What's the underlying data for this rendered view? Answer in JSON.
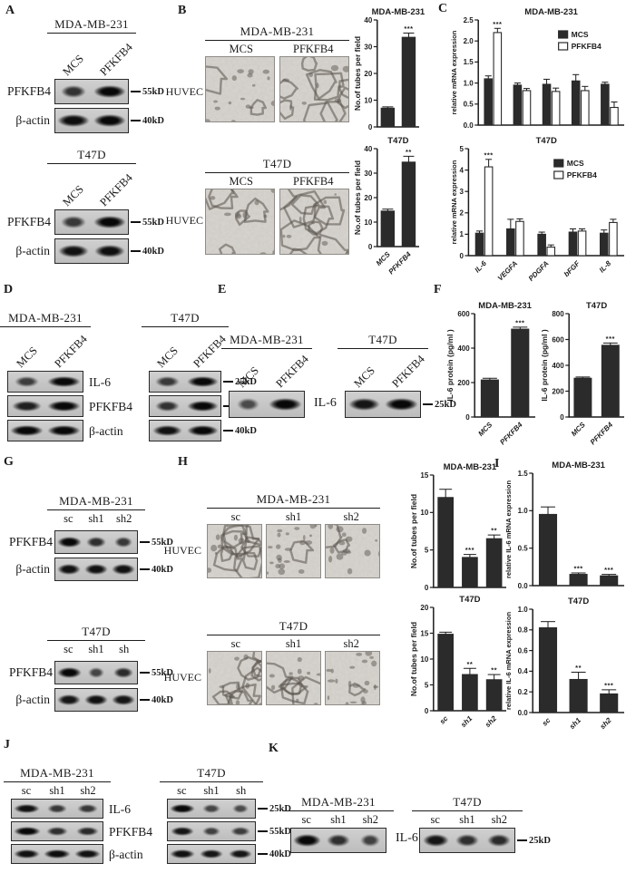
{
  "colors": {
    "ink": "#1a1a1a",
    "bar": "#2b2b2b",
    "blot_bg": "#c8c8c8",
    "micro_bg": "#d8d5d0"
  },
  "panels": {
    "A": {
      "label": "A",
      "groups": [
        {
          "title": "MDA-MB-231",
          "lane_style": "rotated",
          "lanes": [
            "MCS",
            "PFKFB4"
          ],
          "rows": [
            {
              "label": "PFKFB4",
              "marker": "55kD",
              "bands": [
                0.55,
                1
              ]
            },
            {
              "label": "β-actin",
              "marker": "40kD",
              "bands": [
                0.95,
                1
              ]
            }
          ]
        },
        {
          "title": "T47D",
          "lane_style": "rotated",
          "lanes": [
            "MCS",
            "PFKFB4"
          ],
          "rows": [
            {
              "label": "PFKFB4",
              "marker": "55kD",
              "bands": [
                0.5,
                1
              ]
            },
            {
              "label": "β-actin",
              "marker": "40kD",
              "bands": [
                0.9,
                0.92
              ]
            }
          ]
        }
      ]
    },
    "B": {
      "label": "B",
      "huvec_label": "HUVEC",
      "groups": [
        {
          "title": "MDA-MB-231",
          "lanes": [
            "MCS",
            "PFKFB4"
          ],
          "images": [
            {
              "tubes": "sparse"
            },
            {
              "tubes": "dense"
            }
          ]
        },
        {
          "title": "T47D",
          "lanes": [
            "MCS",
            "PFKFB4"
          ],
          "images": [
            {
              "tubes": "medium"
            },
            {
              "tubes": "dense"
            }
          ]
        }
      ]
    },
    "C": {
      "label": "C"
    },
    "D": {
      "label": "D",
      "row_labels": [
        "IL-6",
        "PFKFB4",
        "β-actin"
      ],
      "groups": [
        {
          "title": "MDA-MB-231",
          "lane_style": "rotated",
          "lanes": [
            "MCS",
            "PFKFB4"
          ],
          "rows": [
            {
              "bands": [
                0.45,
                1
              ]
            },
            {
              "bands": [
                0.75,
                1
              ]
            },
            {
              "bands": [
                1,
                1
              ]
            }
          ]
        },
        {
          "title": "T47D",
          "lane_style": "rotated",
          "lanes": [
            "MCS",
            "PFKFB4"
          ],
          "rows": [
            {
              "marker": "25kD",
              "bands": [
                0.5,
                1
              ]
            },
            {
              "marker": "55kD",
              "bands": [
                0.55,
                1
              ]
            },
            {
              "marker": "40kD",
              "bands": [
                0.9,
                1
              ]
            }
          ]
        }
      ]
    },
    "E": {
      "label": "E",
      "blot_label": "IL-6",
      "groups": [
        {
          "title": "MDA-MB-231",
          "lane_style": "rotated",
          "lanes": [
            "MCS",
            "PFKFB4"
          ],
          "rows": [
            {
              "bands": [
                0.3,
                1
              ]
            }
          ]
        },
        {
          "title": "T47D",
          "lane_style": "rotated",
          "lanes": [
            "MCS",
            "PFKFB4"
          ],
          "rows": [
            {
              "marker": "25kD",
              "bands": [
                0.85,
                1
              ]
            }
          ]
        }
      ]
    },
    "F": {
      "label": "F"
    },
    "G": {
      "label": "G",
      "groups": [
        {
          "title": "MDA-MB-231",
          "lanes": [
            "sc",
            "sh1",
            "sh2"
          ],
          "rows": [
            {
              "label": "PFKFB4",
              "marker": "55kD",
              "bands": [
                1,
                0.6,
                0.5
              ]
            },
            {
              "label": "β-actin",
              "marker": "40kD",
              "bands": [
                0.9,
                0.9,
                0.9
              ]
            }
          ]
        },
        {
          "title": "T47D",
          "lanes": [
            "sc",
            "sh1",
            "sh"
          ],
          "rows": [
            {
              "label": "PFKFB4",
              "marker": "55kD",
              "bands": [
                1,
                0.35,
                0.65
              ]
            },
            {
              "label": "β-actin",
              "marker": "40kD",
              "bands": [
                0.85,
                0.9,
                0.85
              ]
            }
          ]
        }
      ]
    },
    "H": {
      "label": "H",
      "huvec_label": "HUVEC",
      "groups": [
        {
          "title": "MDA-MB-231",
          "lanes": [
            "sc",
            "sh1",
            "sh2"
          ],
          "images": [
            {
              "tubes": "dense"
            },
            {
              "tubes": "clumps"
            },
            {
              "tubes": "sparse"
            }
          ]
        },
        {
          "title": "T47D",
          "lanes": [
            "sc",
            "sh1",
            "sh2"
          ],
          "images": [
            {
              "tubes": "dense"
            },
            {
              "tubes": "medium"
            },
            {
              "tubes": "clumps"
            }
          ]
        }
      ]
    },
    "I": {
      "label": "I"
    },
    "J": {
      "label": "J",
      "row_labels": [
        "IL-6",
        "PFKFB4",
        "β-actin"
      ],
      "groups": [
        {
          "title": "MDA-MB-231",
          "lanes": [
            "sc",
            "sh1",
            "sh2"
          ],
          "rows": [
            {
              "bands": [
                0.9,
                0.5,
                0.5
              ]
            },
            {
              "bands": [
                1,
                0.6,
                0.65
              ]
            },
            {
              "bands": [
                0.9,
                0.95,
                0.9
              ]
            }
          ]
        },
        {
          "title": "T47D",
          "lanes": [
            "sc",
            "sh1",
            "sh"
          ],
          "rows": [
            {
              "marker": "25kD",
              "bands": [
                1,
                0.35,
                0.3
              ]
            },
            {
              "marker": "55kD",
              "bands": [
                0.85,
                0.4,
                0.45
              ]
            },
            {
              "marker": "40kD",
              "bands": [
                0.9,
                0.85,
                0.85
              ]
            }
          ]
        }
      ]
    },
    "K": {
      "label": "K",
      "blot_label": "IL-6",
      "groups": [
        {
          "title": "MDA-MB-231",
          "lanes": [
            "sc",
            "sh1",
            "sh2"
          ],
          "rows": [
            {
              "bands": [
                1,
                0.6,
                0.4
              ]
            }
          ]
        },
        {
          "title": "T47D",
          "lanes": [
            "sc",
            "sh1",
            "sh2"
          ],
          "rows": [
            {
              "marker": "25kD",
              "bands": [
                0.85,
                0.6,
                0.65
              ]
            }
          ]
        }
      ]
    }
  },
  "chart_data": [
    {
      "panel": "B",
      "type": "bar",
      "title": "MDA-MB-231",
      "ylabel": "No.of tubes per field",
      "categories": [
        "MCS",
        "PFKFB4"
      ],
      "values": [
        7,
        33.5
      ],
      "errors": [
        0.5,
        1.6
      ],
      "sig": [
        "",
        "***"
      ],
      "ylim": [
        0,
        40
      ],
      "yticks": [
        0,
        10,
        20,
        30,
        40
      ],
      "ydecimals": 0,
      "show_xlabels": false
    },
    {
      "panel": "B",
      "type": "bar",
      "title": "T47D",
      "ylabel": "No.of tubes per field",
      "categories": [
        "MCS",
        "PFKFB4"
      ],
      "values": [
        14.5,
        34.5
      ],
      "errors": [
        0.8,
        2.4
      ],
      "sig": [
        "",
        "**"
      ],
      "ylim": [
        0,
        40
      ],
      "yticks": [
        0,
        10,
        20,
        30,
        40
      ],
      "ydecimals": 0,
      "show_xlabels": true
    },
    {
      "panel": "C",
      "type": "grouped_bar",
      "title": "MDA-MB-231",
      "ylabel": "relative  mRNA expression",
      "categories": [
        "IL-6",
        "VEGFA",
        "PDGFA",
        "bFGF",
        "IL-8"
      ],
      "series": [
        {
          "name": "MCS",
          "style": "solid",
          "values": [
            1.1,
            0.95,
            0.97,
            1.05,
            0.97
          ],
          "errors": [
            0.07,
            0.05,
            0.12,
            0.15,
            0.05
          ]
        },
        {
          "name": "PFKFB4",
          "style": "open",
          "values": [
            2.2,
            0.82,
            0.8,
            0.82,
            0.42
          ],
          "errors": [
            0.1,
            0.05,
            0.08,
            0.1,
            0.13
          ],
          "sig": [
            "***",
            "",
            "",
            "",
            ""
          ]
        }
      ],
      "ylim": [
        0,
        2.5
      ],
      "yticks": [
        0,
        0.5,
        1,
        1.5,
        2,
        2.5
      ],
      "ydecimals": 1,
      "legend": true,
      "show_xlabels": false
    },
    {
      "panel": "C",
      "type": "grouped_bar",
      "title": "T47D",
      "ylabel": "relative  mRNA expression",
      "categories": [
        "IL-6",
        "VEGFA",
        "PDGFA",
        "bFGF",
        "IL-8"
      ],
      "series": [
        {
          "name": "MCS",
          "style": "solid",
          "values": [
            1.05,
            1.25,
            1.0,
            1.1,
            1.05
          ],
          "errors": [
            0.1,
            0.45,
            0.1,
            0.15,
            0.15
          ]
        },
        {
          "name": "PFKFB4",
          "style": "open",
          "values": [
            4.15,
            1.6,
            0.4,
            1.15,
            1.55
          ],
          "errors": [
            0.35,
            0.12,
            0.1,
            0.1,
            0.15
          ],
          "sig": [
            "***",
            "",
            "",
            "",
            ""
          ]
        }
      ],
      "ylim": [
        0,
        5
      ],
      "yticks": [
        0,
        1,
        2,
        3,
        4,
        5
      ],
      "ydecimals": 0,
      "legend": true,
      "show_xlabels": true
    },
    {
      "panel": "F",
      "type": "bar",
      "title": "MDA-MB-231",
      "ylabel": "IL-6 protein  (pg/ml )",
      "categories": [
        "MCS",
        "PFKFB4"
      ],
      "values": [
        215,
        510
      ],
      "errors": [
        10,
        12
      ],
      "sig": [
        "",
        "***"
      ],
      "ylim": [
        0,
        600
      ],
      "yticks": [
        0,
        200,
        400,
        600
      ],
      "ydecimals": 0,
      "show_xlabels": true
    },
    {
      "panel": "F",
      "type": "bar",
      "title": "T47D",
      "ylabel": "IL-6 protein  (pg/ml )",
      "categories": [
        "MCS",
        "PFKFB4"
      ],
      "values": [
        300,
        555
      ],
      "errors": [
        10,
        18
      ],
      "sig": [
        "",
        "***"
      ],
      "ylim": [
        0,
        800
      ],
      "yticks": [
        0,
        200,
        400,
        600,
        800
      ],
      "ydecimals": 0,
      "show_xlabels": true
    },
    {
      "panel": "H",
      "type": "bar",
      "title": "MDA-MB-231",
      "ylabel": "No.of tubes per field",
      "categories": [
        "sc",
        "sh1",
        "sh2"
      ],
      "values": [
        12,
        4,
        6.5
      ],
      "errors": [
        1.1,
        0.4,
        0.5
      ],
      "sig": [
        "",
        "***",
        "**"
      ],
      "ylim": [
        0,
        15
      ],
      "yticks": [
        0,
        5,
        10,
        15
      ],
      "ydecimals": 0,
      "show_xlabels": false
    },
    {
      "panel": "H",
      "type": "bar",
      "title": "T47D",
      "ylabel": "No.of tubes per field",
      "categories": [
        "sc",
        "sh1",
        "sh2"
      ],
      "values": [
        14.8,
        7,
        6
      ],
      "errors": [
        0.4,
        1.2,
        1.0
      ],
      "sig": [
        "",
        "**",
        "**"
      ],
      "ylim": [
        0,
        20
      ],
      "yticks": [
        0,
        5,
        10,
        15,
        20
      ],
      "ydecimals": 0,
      "show_xlabels": true
    },
    {
      "panel": "I",
      "type": "bar",
      "title": "MDA-MB-231",
      "ylabel": "relative IL-6 mRNA expression",
      "categories": [
        "sc",
        "sh1",
        "sh2"
      ],
      "values": [
        0.95,
        0.15,
        0.13
      ],
      "errors": [
        0.1,
        0.02,
        0.02
      ],
      "sig": [
        "",
        "***",
        "***"
      ],
      "ylim": [
        0,
        1.5
      ],
      "yticks": [
        0,
        0.5,
        1,
        1.5
      ],
      "ydecimals": 1,
      "show_xlabels": false
    },
    {
      "panel": "I",
      "type": "bar",
      "title": "T47D",
      "ylabel": "relative IL-6 mRNA expression",
      "categories": [
        "sc",
        "sh1",
        "sh2"
      ],
      "values": [
        0.82,
        0.32,
        0.18
      ],
      "errors": [
        0.06,
        0.07,
        0.04
      ],
      "sig": [
        "",
        "**",
        "***"
      ],
      "ylim": [
        0,
        1.0
      ],
      "yticks": [
        0,
        0.2,
        0.4,
        0.6,
        0.8,
        1.0
      ],
      "ydecimals": 1,
      "show_xlabels": true
    }
  ]
}
